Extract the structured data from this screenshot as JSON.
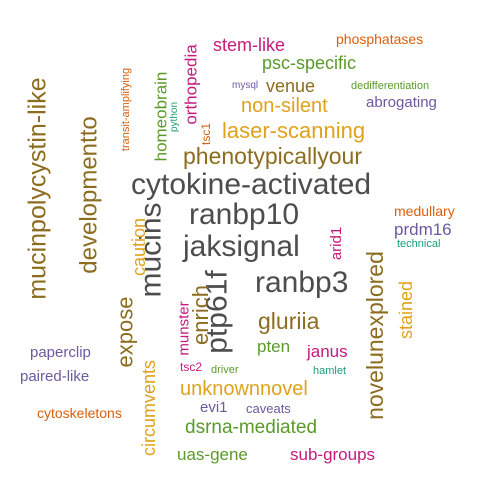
{
  "colors": {
    "gray": "#4d4d4d",
    "olive": "#8c6d1f",
    "gold": "#e0a21c",
    "green": "#5a9a2a",
    "purple": "#6a5a9e",
    "magenta": "#c51b7d",
    "orange": "#d95f0e",
    "teal": "#1b9e77"
  },
  "words": [
    {
      "text": "cytokine-activated",
      "color": "gray",
      "rotated": false
    },
    {
      "text": "jaksignal",
      "color": "gray",
      "rotated": false
    },
    {
      "text": "ranbp10",
      "color": "gray",
      "rotated": false
    },
    {
      "text": "ranbp3",
      "color": "gray",
      "rotated": false
    },
    {
      "text": "mucins",
      "color": "gray",
      "rotated": true
    },
    {
      "text": "ptp61f",
      "color": "gray",
      "rotated": true
    },
    {
      "text": "phenotypicallyour",
      "color": "olive",
      "rotated": false
    },
    {
      "text": "mucinpolycystin-like",
      "color": "olive",
      "rotated": true
    },
    {
      "text": "developmentto",
      "color": "olive",
      "rotated": true
    },
    {
      "text": "expose",
      "color": "olive",
      "rotated": true
    },
    {
      "text": "enrich",
      "color": "olive",
      "rotated": true
    },
    {
      "text": "gluriia",
      "color": "olive",
      "rotated": false
    },
    {
      "text": "novelunexplored",
      "color": "olive",
      "rotated": true
    },
    {
      "text": "venue",
      "color": "olive",
      "rotated": false
    },
    {
      "text": "laser-scanning",
      "color": "gold",
      "rotated": false
    },
    {
      "text": "non-silent",
      "color": "gold",
      "rotated": false
    },
    {
      "text": "caution",
      "color": "gold",
      "rotated": true
    },
    {
      "text": "circumvents",
      "color": "gold",
      "rotated": true
    },
    {
      "text": "unknownnovel",
      "color": "gold",
      "rotated": false
    },
    {
      "text": "stained",
      "color": "gold",
      "rotated": true
    },
    {
      "text": "psc-specific",
      "color": "green",
      "rotated": false
    },
    {
      "text": "homeobrain",
      "color": "green",
      "rotated": true
    },
    {
      "text": "pten",
      "color": "green",
      "rotated": false
    },
    {
      "text": "dsrna-mediated",
      "color": "green",
      "rotated": false
    },
    {
      "text": "uas-gene",
      "color": "green",
      "rotated": false
    },
    {
      "text": "driver",
      "color": "green",
      "rotated": false
    },
    {
      "text": "dedifferentiation",
      "color": "green",
      "rotated": false
    },
    {
      "text": "stem-like",
      "color": "magenta",
      "rotated": false
    },
    {
      "text": "orthopedia",
      "color": "magenta",
      "rotated": true
    },
    {
      "text": "arid1",
      "color": "magenta",
      "rotated": true
    },
    {
      "text": "munster",
      "color": "magenta",
      "rotated": true
    },
    {
      "text": "janus",
      "color": "magenta",
      "rotated": false
    },
    {
      "text": "sub-groups",
      "color": "magenta",
      "rotated": false
    },
    {
      "text": "tsc2",
      "color": "magenta",
      "rotated": false
    },
    {
      "text": "phosphatases",
      "color": "orange",
      "rotated": false
    },
    {
      "text": "medullary",
      "color": "orange",
      "rotated": false
    },
    {
      "text": "cytoskeletons",
      "color": "orange",
      "rotated": false
    },
    {
      "text": "transit-amplifying",
      "color": "orange",
      "rotated": true
    },
    {
      "text": "tsc1",
      "color": "orange",
      "rotated": true
    },
    {
      "text": "abrogating",
      "color": "purple",
      "rotated": false
    },
    {
      "text": "prdm16",
      "color": "purple",
      "rotated": false
    },
    {
      "text": "paperclip",
      "color": "purple",
      "rotated": false
    },
    {
      "text": "paired-like",
      "color": "purple",
      "rotated": false
    },
    {
      "text": "evi1",
      "color": "purple",
      "rotated": false
    },
    {
      "text": "caveats",
      "color": "purple",
      "rotated": false
    },
    {
      "text": "mysql",
      "color": "purple",
      "rotated": false
    },
    {
      "text": "python",
      "color": "teal",
      "rotated": true
    },
    {
      "text": "technical",
      "color": "teal",
      "rotated": false
    },
    {
      "text": "hamlet",
      "color": "teal",
      "rotated": false
    }
  ]
}
